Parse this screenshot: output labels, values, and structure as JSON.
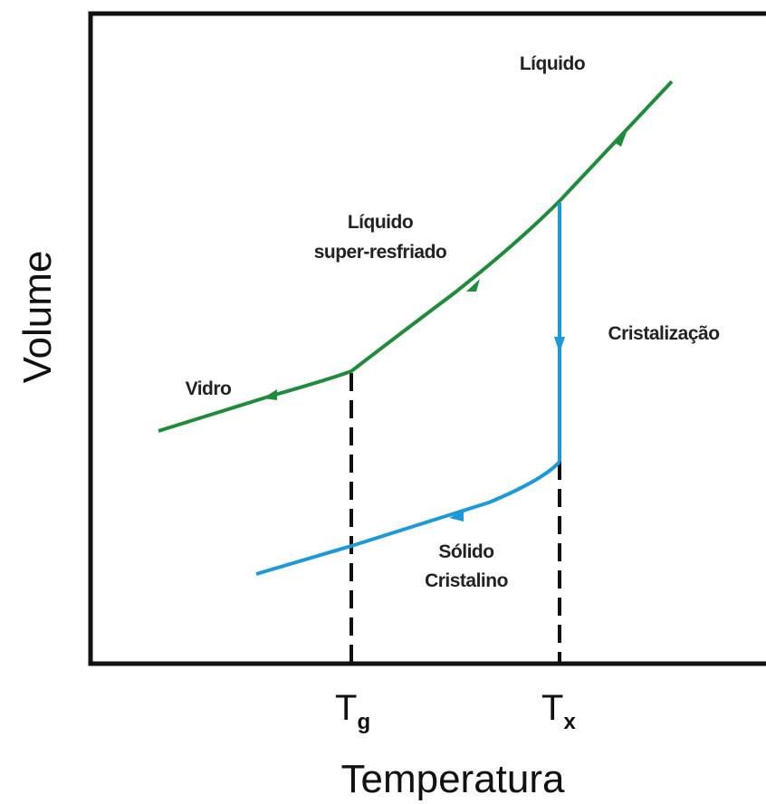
{
  "axes": {
    "x_label": "Temperatura",
    "y_label": "Volume"
  },
  "ticks": [
    {
      "symbol": "T",
      "subscript": "g"
    },
    {
      "symbol": "T",
      "subscript": "x"
    }
  ],
  "labels": {
    "liquid": "Líquido",
    "supercooled": [
      "Líquido",
      "super-resfriado"
    ],
    "crystallization": "Cristalização",
    "glass": "Vidro",
    "crystalline_solid": [
      "Sólido",
      "Cristalino"
    ]
  }
}
